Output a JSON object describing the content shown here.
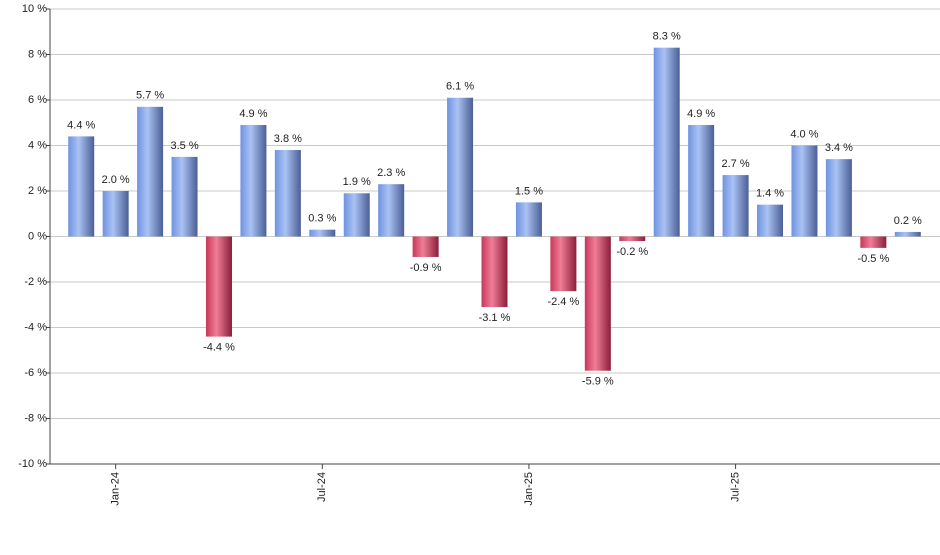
{
  "chart_data": {
    "type": "bar",
    "categories": [
      null,
      "Jan-24",
      null,
      null,
      null,
      null,
      null,
      "Jul-24",
      null,
      null,
      null,
      null,
      null,
      "Jan-25",
      null,
      null,
      null,
      null,
      null,
      "Jul-25",
      null,
      null,
      null,
      null,
      null
    ],
    "values": [
      4.4,
      2.0,
      5.7,
      3.5,
      -4.4,
      4.9,
      3.8,
      0.3,
      1.9,
      2.3,
      -0.9,
      6.1,
      -3.1,
      1.5,
      -2.4,
      -5.9,
      -0.2,
      8.3,
      4.9,
      2.7,
      1.4,
      4.0,
      3.4,
      -0.5,
      0.2
    ],
    "value_labels": [
      "4.4 %",
      "2.0 %",
      "5.7 %",
      "3.5 %",
      "-4.4 %",
      "4.9 %",
      "3.8 %",
      "0.3 %",
      "1.9 %",
      "2.3 %",
      "-0.9 %",
      "6.1 %",
      "-3.1 %",
      "1.5 %",
      "-2.4 %",
      "-5.9 %",
      "-0.2 %",
      "8.3 %",
      "4.9 %",
      "2.7 %",
      "1.4 %",
      "4.0 %",
      "3.4 %",
      "-0.5 %",
      "0.2 %"
    ],
    "positive_color": "#6f93e0",
    "negative_color": "#c8385a",
    "ylim": [
      -10,
      10
    ],
    "yticks": [
      {
        "value": -10,
        "label": "-10 %"
      },
      {
        "value": -8,
        "label": "-8 %"
      },
      {
        "value": -6,
        "label": "-6 %"
      },
      {
        "value": -4,
        "label": "-4 %"
      },
      {
        "value": -2,
        "label": "-2 %"
      },
      {
        "value": 0,
        "label": "0 %"
      },
      {
        "value": 2,
        "label": "2 %"
      },
      {
        "value": 4,
        "label": "4 %"
      },
      {
        "value": 6,
        "label": "6 %"
      },
      {
        "value": 8,
        "label": "8 %"
      },
      {
        "value": 10,
        "label": "10 %"
      }
    ],
    "grid": true
  }
}
